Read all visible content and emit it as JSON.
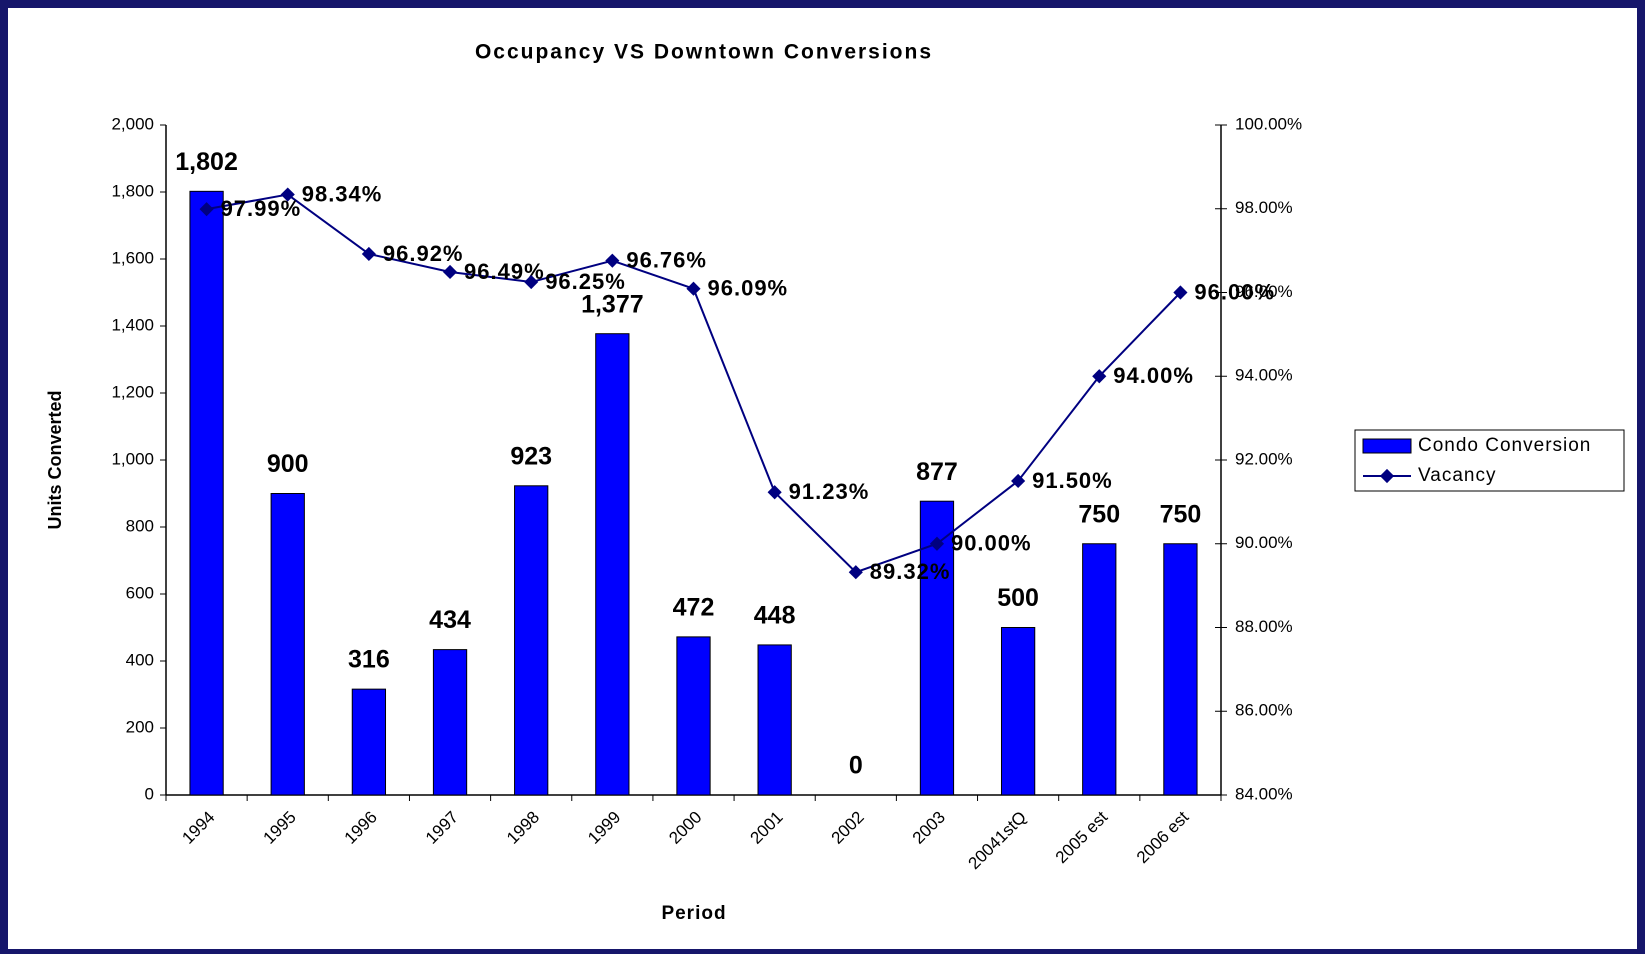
{
  "chart_data": {
    "type": "bar",
    "title": "Occupancy VS Downtown Conversions",
    "x_label": "Period",
    "y_label": "Units Converted",
    "categories": [
      "1994",
      "1995",
      "1996",
      "1997",
      "1998",
      "1999",
      "2000",
      "2001",
      "2002",
      "2003",
      "20041stQ",
      "2005 est",
      "2006 est"
    ],
    "series": [
      {
        "name": "Condo Conversion",
        "type": "bar",
        "color": "#0000ff",
        "values": [
          1802,
          900,
          316,
          434,
          923,
          1377,
          472,
          448,
          0,
          877,
          500,
          750,
          750
        ],
        "value_labels": [
          "1,802",
          "900",
          "316",
          "434",
          "923",
          "1,377",
          "472",
          "448",
          "0",
          "877",
          "500",
          "750",
          "750"
        ]
      },
      {
        "name": "Vacancy",
        "type": "line",
        "axis": "y2",
        "color": "#000080",
        "values": [
          97.99,
          98.34,
          96.92,
          96.49,
          96.25,
          96.76,
          96.09,
          91.23,
          89.32,
          90.0,
          91.5,
          94.0,
          96.0
        ],
        "value_labels": [
          "97.99%",
          "98.34%",
          "96.92%",
          "96.49%",
          "96.25%",
          "96.76%",
          "96.09%",
          "91.23%",
          "89.32%",
          "90.00%",
          "91.50%",
          "94.00%",
          "96.00%"
        ]
      }
    ],
    "ylim": [
      0,
      2000
    ],
    "yticks": [
      0,
      200,
      400,
      600,
      800,
      {
        "value": 1000,
        "label": "1,000"
      },
      {
        "value": 1200,
        "label": "1,200"
      },
      {
        "value": 1400,
        "label": "1,400"
      },
      {
        "value": 1600,
        "label": "1,600"
      },
      {
        "value": 1800,
        "label": "1,800"
      },
      {
        "value": 2000,
        "label": "2,000"
      }
    ],
    "y2lim": [
      84,
      100
    ],
    "y2ticks": [
      {
        "value": 84,
        "label": "84.00%"
      },
      {
        "value": 86,
        "label": "86.00%"
      },
      {
        "value": 88,
        "label": "88.00%"
      },
      {
        "value": 90,
        "label": "90.00%"
      },
      {
        "value": 92,
        "label": "92.00%"
      },
      {
        "value": 94,
        "label": "94.00%"
      },
      {
        "value": 96,
        "label": "96.00%"
      },
      {
        "value": 98,
        "label": "98.00%"
      },
      {
        "value": 100,
        "label": "100.00%"
      }
    ],
    "legend": "right"
  }
}
